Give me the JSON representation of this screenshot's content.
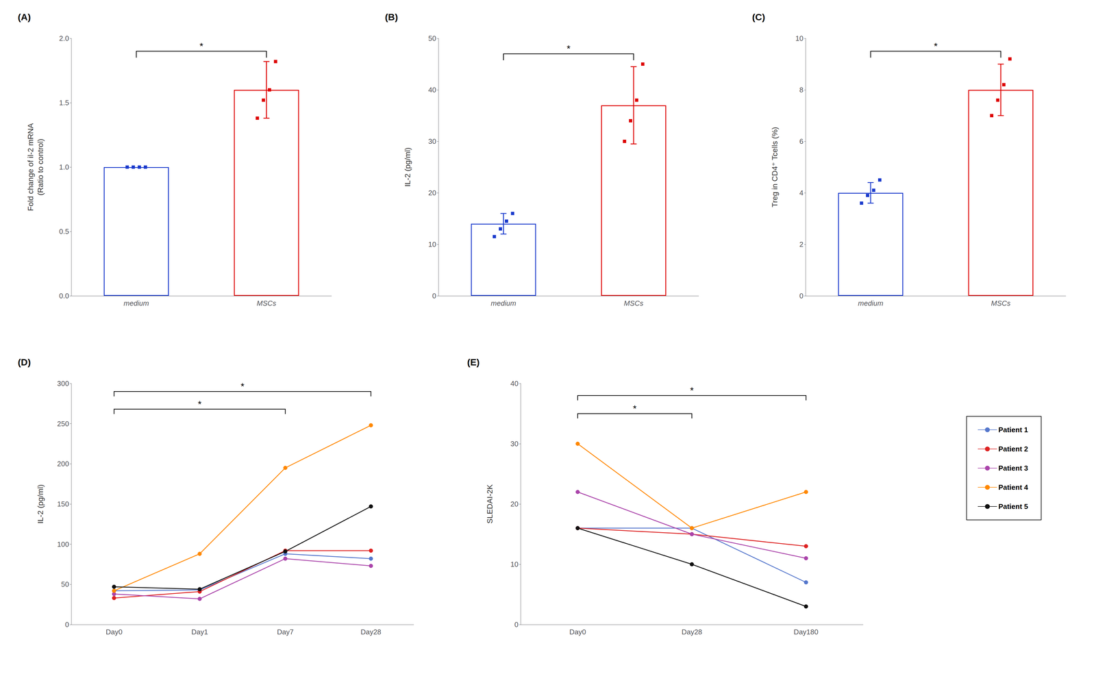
{
  "chart_data": [
    {
      "type": "bar",
      "title": "(A)",
      "categories": [
        "medium",
        "MSCs"
      ],
      "values": [
        1.0,
        1.6
      ],
      "errors": [
        0.0,
        0.22
      ],
      "colors": [
        "#1a3acc",
        "#dd0000"
      ],
      "points": [
        [
          1.0,
          1.0,
          1.0,
          1.0
        ],
        [
          1.38,
          1.52,
          1.6,
          1.82
        ]
      ],
      "ylabel": "Fold change of il-2 mRNA\n(Ratio to control)",
      "ylim": [
        0.0,
        2.0
      ],
      "yticks": [
        {
          "value": 0.0,
          "label": "0.0"
        },
        0.5,
        {
          "value": 1.0,
          "label": "1.0"
        },
        1.5,
        {
          "value": 2.0,
          "label": "2.0"
        }
      ],
      "annotations": [
        {
          "x1": "medium",
          "x2": "MSCs",
          "y": 1.9,
          "text": "*"
        }
      ],
      "grid": false
    },
    {
      "type": "bar",
      "title": "(B)",
      "categories": [
        "medium",
        "MSCs"
      ],
      "values": [
        14.0,
        37.0
      ],
      "errors": [
        2.0,
        7.5
      ],
      "colors": [
        "#1a3acc",
        "#dd0000"
      ],
      "points": [
        [
          11.5,
          13.0,
          14.5,
          16.0
        ],
        [
          30.0,
          34.0,
          38.0,
          45.0
        ]
      ],
      "ylabel": "IL-2 (pg/ml)",
      "ylim": [
        0,
        50
      ],
      "yticks": [
        0,
        10,
        20,
        30,
        40,
        50
      ],
      "annotations": [
        {
          "x1": "medium",
          "x2": "MSCs",
          "y": 47,
          "text": "*"
        }
      ],
      "grid": false
    },
    {
      "type": "bar",
      "title": "(C)",
      "categories": [
        "medium",
        "MSCs"
      ],
      "values": [
        4.0,
        8.0
      ],
      "errors": [
        0.4,
        1.0
      ],
      "colors": [
        "#1a3acc",
        "#dd0000"
      ],
      "points": [
        [
          3.6,
          3.9,
          4.1,
          4.5
        ],
        [
          7.0,
          7.6,
          8.2,
          9.2
        ]
      ],
      "ylabel": "Treg in CD4⁺ Tcells (%)",
      "ylim": [
        0,
        10
      ],
      "yticks": [
        0,
        2,
        4,
        6,
        8,
        10
      ],
      "annotations": [
        {
          "x1": "medium",
          "x2": "MSCs",
          "y": 9.5,
          "text": "*"
        }
      ],
      "grid": false
    },
    {
      "type": "line",
      "title": "(D)",
      "marker": "circle",
      "categories": [
        "Day0",
        "Day1",
        "Day7",
        "Day28"
      ],
      "series": [
        {
          "name": "Patient 1",
          "color": "#5577cc",
          "values": [
            42,
            43,
            88,
            82
          ]
        },
        {
          "name": "Patient 2",
          "color": "#dd2222",
          "values": [
            33,
            41,
            92,
            92
          ]
        },
        {
          "name": "Patient 3",
          "color": "#aa44aa",
          "values": [
            38,
            32,
            82,
            73
          ]
        },
        {
          "name": "Patient 4",
          "color": "#ff8800",
          "values": [
            42,
            88,
            195,
            248
          ]
        },
        {
          "name": "Patient 5",
          "color": "#111111",
          "values": [
            47,
            44,
            91,
            147
          ]
        }
      ],
      "ylabel": "IL-2 (pg/ml)",
      "ylim": [
        0,
        300
      ],
      "yticks": [
        0,
        50,
        100,
        150,
        200,
        250,
        300
      ],
      "annotations": [
        {
          "x1": "Day0",
          "x2": "Day7",
          "y": 268,
          "text": "*"
        },
        {
          "x1": "Day0",
          "x2": "Day28",
          "y": 290,
          "text": "*"
        }
      ],
      "grid": false
    },
    {
      "type": "line",
      "title": "(E)",
      "marker": "circle",
      "categories": [
        "Day0",
        "Day28",
        "Day180"
      ],
      "series": [
        {
          "name": "Patient 1",
          "color": "#5577cc",
          "values": [
            16,
            16,
            7
          ]
        },
        {
          "name": "Patient 2",
          "color": "#dd2222",
          "values": [
            16,
            15,
            13
          ]
        },
        {
          "name": "Patient 3",
          "color": "#aa44aa",
          "values": [
            22,
            15,
            11
          ]
        },
        {
          "name": "Patient 4",
          "color": "#ff8800",
          "values": [
            30,
            16,
            22
          ]
        },
        {
          "name": "Patient 5",
          "color": "#111111",
          "values": [
            16,
            10,
            3
          ]
        }
      ],
      "ylabel": "SLEDAI-2K",
      "ylim": [
        0,
        40
      ],
      "yticks": [
        0,
        10,
        20,
        30,
        40
      ],
      "annotations": [
        {
          "x1": "Day0",
          "x2": "Day28",
          "y": 35,
          "text": "*"
        },
        {
          "x1": "Day0",
          "x2": "Day180",
          "y": 38,
          "text": "*"
        }
      ],
      "grid": false,
      "legend": "right"
    }
  ]
}
